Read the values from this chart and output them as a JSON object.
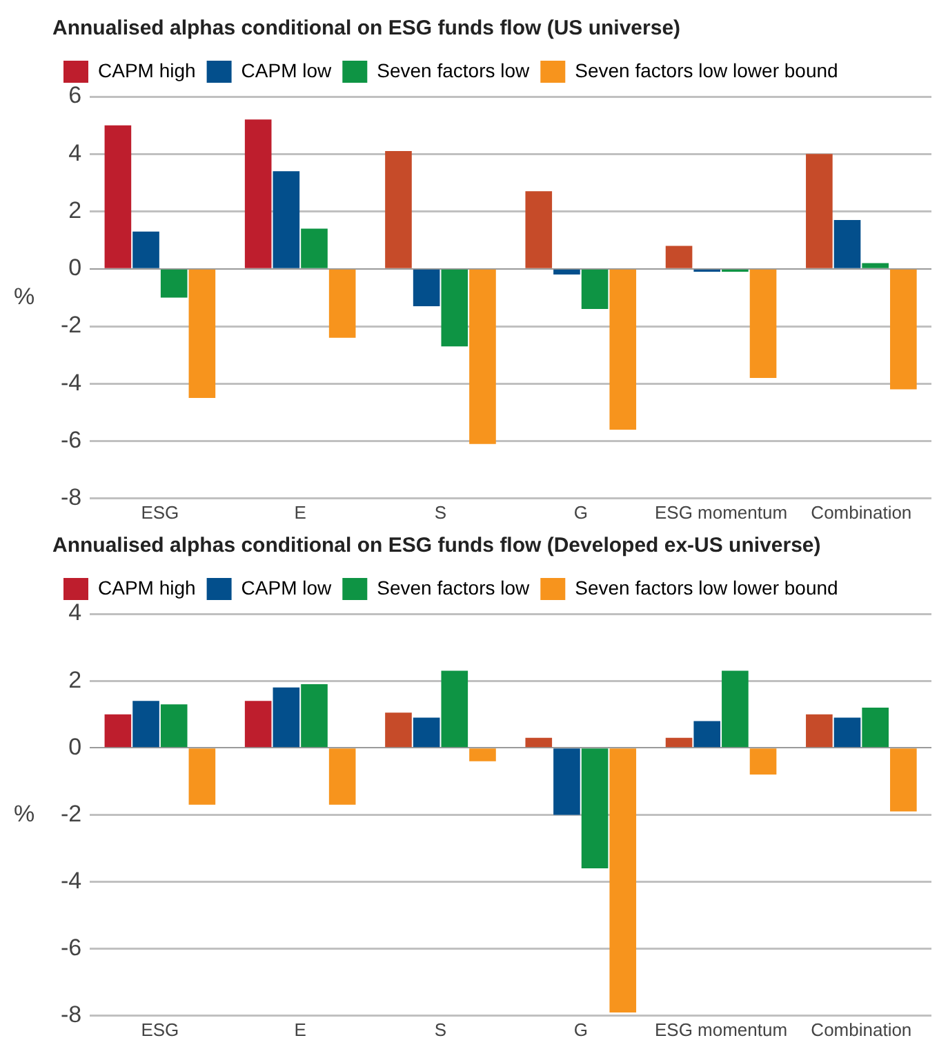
{
  "chart_data": [
    {
      "type": "bar",
      "title": "Annualised alphas conditional on ESG funds flow (US universe)",
      "ylabel": "%",
      "categories": [
        "ESG",
        "E",
        "S",
        "G",
        "ESG momentum",
        "Combination"
      ],
      "series": [
        {
          "name": "CAPM high",
          "color": "#be1e2d",
          "colors": [
            "#be1e2d",
            "#be1e2d",
            "#c64b29",
            "#c64b29",
            "#c64b29",
            "#c64b29"
          ],
          "values": [
            5.0,
            5.2,
            4.1,
            2.7,
            0.8,
            4.0
          ]
        },
        {
          "name": "CAPM low",
          "color": "#034f8c",
          "values": [
            1.3,
            3.4,
            -1.3,
            -0.2,
            -0.1,
            1.7
          ]
        },
        {
          "name": "Seven factors low",
          "color": "#0e9444",
          "values": [
            -1.0,
            1.4,
            -2.7,
            -1.4,
            -0.1,
            0.2
          ]
        },
        {
          "name": "Seven factors low lower bound",
          "color": "#f7941d",
          "values": [
            -4.5,
            -2.4,
            -6.1,
            -5.6,
            -3.8,
            -4.2
          ]
        }
      ],
      "ylim": [
        -8,
        6
      ],
      "yticks": [
        -8,
        -6,
        -4,
        -2,
        0,
        2,
        4,
        6
      ],
      "grid": "y",
      "legend": "top left"
    },
    {
      "type": "bar",
      "title": "Annualised alphas conditional on ESG funds flow (Developed ex-US universe)",
      "ylabel": "%",
      "categories": [
        "ESG",
        "E",
        "S",
        "G",
        "ESG momentum",
        "Combination"
      ],
      "series": [
        {
          "name": "CAPM high",
          "color": "#be1e2d",
          "colors": [
            "#be1e2d",
            "#be1e2d",
            "#c64b29",
            "#c64b29",
            "#c64b29",
            "#c64b29"
          ],
          "values": [
            1.0,
            1.4,
            1.05,
            0.3,
            0.3,
            1.0
          ]
        },
        {
          "name": "CAPM low",
          "color": "#034f8c",
          "values": [
            1.4,
            1.8,
            0.9,
            -2.0,
            0.8,
            0.9
          ]
        },
        {
          "name": "Seven factors low",
          "color": "#0e9444",
          "values": [
            1.3,
            1.9,
            2.3,
            -3.6,
            2.3,
            1.2
          ]
        },
        {
          "name": "Seven factors low lower bound",
          "color": "#f7941d",
          "values": [
            -1.7,
            -1.7,
            -0.4,
            -7.9,
            -0.8,
            -1.9
          ]
        }
      ],
      "ylim": [
        -8,
        4
      ],
      "yticks": [
        -8,
        -6,
        -4,
        -2,
        0,
        2,
        4
      ],
      "grid": "y",
      "legend": "top left"
    }
  ]
}
